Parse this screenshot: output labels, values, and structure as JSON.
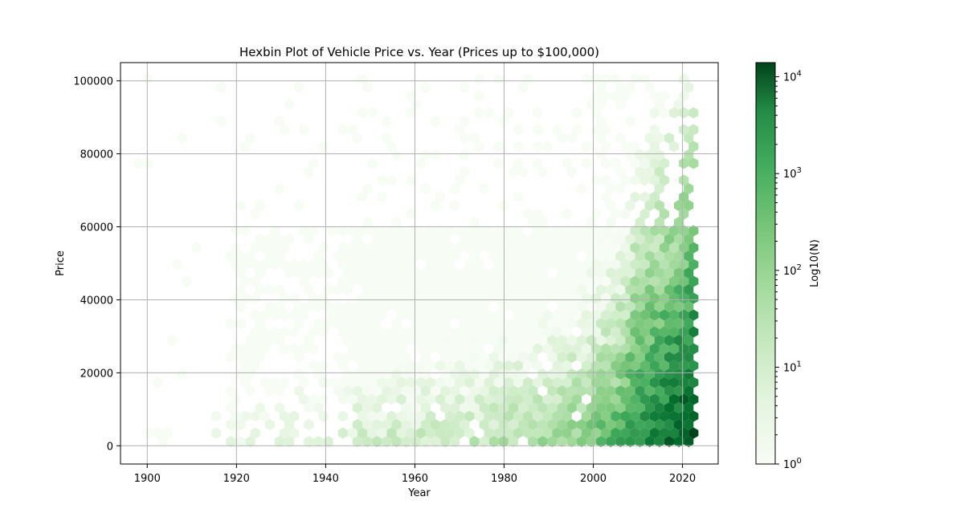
{
  "chart_data": {
    "type": "heatmap",
    "subtype": "hexbin",
    "title": "Hexbin Plot of Vehicle Price vs. Year (Prices up to $100,000)",
    "xlabel": "Year",
    "ylabel": "Price",
    "xlim": [
      1894,
      2028
    ],
    "ylim": [
      -5000,
      105000
    ],
    "xticks": [
      1900,
      1920,
      1940,
      1960,
      1980,
      2000,
      2020
    ],
    "yticks": [
      0,
      20000,
      40000,
      60000,
      80000,
      100000
    ],
    "xtick_labels": [
      "1900",
      "1920",
      "1940",
      "1960",
      "1980",
      "2000",
      "2020"
    ],
    "ytick_labels": [
      "0",
      "20000",
      "40000",
      "60000",
      "80000",
      "100000"
    ],
    "grid": true,
    "colormap": "Greens",
    "color_scale": "log",
    "colorbar": {
      "label": "Log10(N)",
      "range": [
        1,
        14000
      ],
      "tick_labels": [
        {
          "base": "10",
          "exp": "0"
        },
        {
          "base": "10",
          "exp": "1"
        },
        {
          "base": "10",
          "exp": "2"
        },
        {
          "base": "10",
          "exp": "3"
        },
        {
          "base": "10",
          "exp": "4"
        }
      ]
    },
    "density_regions": [
      {
        "x": [
          1899,
          1903
        ],
        "y": [
          -1000,
          4000
        ],
        "approx_count": 3
      },
      {
        "x": [
          1920,
          1945
        ],
        "y": [
          0,
          40000
        ],
        "approx_count": 8
      },
      {
        "x": [
          1945,
          1975
        ],
        "y": [
          0,
          40000
        ],
        "approx_count": 30
      },
      {
        "x": [
          1975,
          2000
        ],
        "y": [
          0,
          35000
        ],
        "approx_count": 150
      },
      {
        "x": [
          2000,
          2022
        ],
        "y": [
          0,
          60000
        ],
        "approx_count": 2000
      },
      {
        "x": [
          2010,
          2022
        ],
        "y": [
          0,
          20000
        ],
        "approx_count": 12000
      },
      {
        "x": [
          1930,
          2022
        ],
        "y": [
          60000,
          100000
        ],
        "approx_count": 5
      }
    ],
    "colors": {
      "low": "#f7fcf5",
      "mid": "#74c476",
      "high": "#00441b",
      "grid": "#b0b0b0"
    }
  }
}
